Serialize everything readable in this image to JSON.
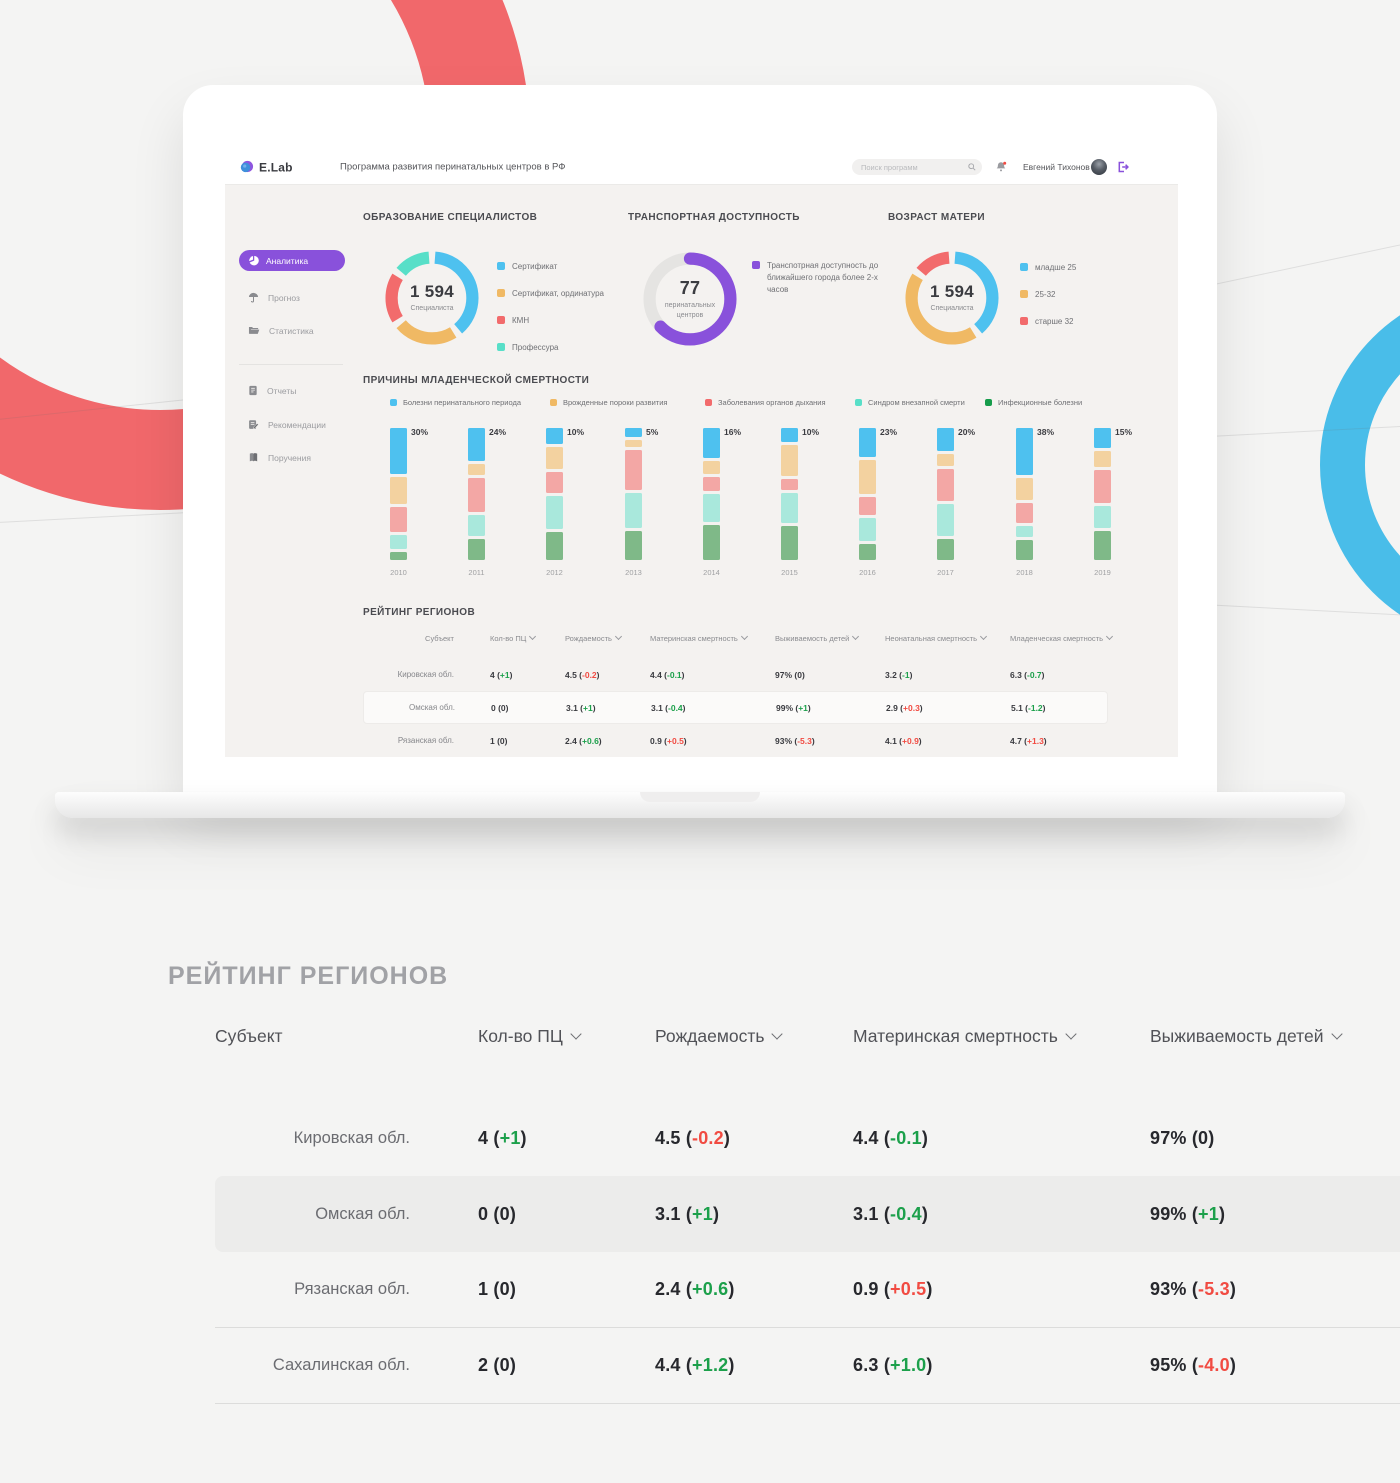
{
  "header": {
    "logo_text": "E.Lab",
    "app_title": "Программа развития перинатальных центров в  РФ",
    "search_placeholder": "Поиск программ",
    "user_name": "Евгений Тихонов"
  },
  "sidebar": {
    "items": [
      {
        "label": "Аналитика"
      },
      {
        "label": "Прогноз"
      },
      {
        "label": "Статистика"
      },
      {
        "label": "Отчеты"
      },
      {
        "label": "Рекомендации"
      },
      {
        "label": "Поручения"
      }
    ]
  },
  "donuts": [
    {
      "title": "ОБРАЗОВАНИЕ СПЕЦИАЛИСТОВ",
      "center_value": "1 594",
      "center_label": "Специалиста",
      "round_caps": false,
      "track": null,
      "segments": [
        {
          "label": "Сертификат",
          "color": "#4EC1EF",
          "value": 40
        },
        {
          "label": "Сертификат, ординатура",
          "color": "#F0B964",
          "value": 25
        },
        {
          "label": "КМН",
          "color": "#F26B6C",
          "value": 20
        },
        {
          "label": "Профессура",
          "color": "#58DFC8",
          "value": 15
        }
      ]
    },
    {
      "title": "ТРАНСПОРТНАЯ ДОСТУПНОСТЬ",
      "center_value": "77",
      "center_label": "перинатальных центров",
      "round_caps": true,
      "track": "#E5E4E2",
      "segments": [
        {
          "label": "Транспотрная доступность до ближайшего города более 2-х часов",
          "color": "#8951DB",
          "value": 63
        }
      ]
    },
    {
      "title": "ВОЗРАСТ МАТЕРИ",
      "center_value": "1 594",
      "center_label": "Специалиста",
      "round_caps": false,
      "track": null,
      "segments": [
        {
          "label": "младше 25",
          "color": "#4EC1EF",
          "value": 40
        },
        {
          "label": "25-32",
          "color": "#F0B964",
          "value": 45
        },
        {
          "label": "старше 32",
          "color": "#F26B6C",
          "value": 15
        }
      ]
    }
  ],
  "mortality_chart": {
    "title": "ПРИЧИНЫ МЛАДЕНЧЕСКОЙ СМЕРТНОСТИ",
    "type": "stacked-bar",
    "legend": [
      {
        "label": "Болезни перинатального периода",
        "color": "#4EC1EF"
      },
      {
        "label": "Врожденные пороки развития",
        "color": "#F0B964"
      },
      {
        "label": "Заболевания органов дыхания",
        "color": "#F26B6C"
      },
      {
        "label": "Синдром внезапной смерти",
        "color": "#58DFC8"
      },
      {
        "label": "Инфекционные болезни",
        "color": "#169C4B"
      }
    ],
    "bar_colors": [
      "#4EC1EF",
      "#F3D2A0",
      "#F3A7A5",
      "#A9E8DC",
      "#7FB988"
    ],
    "bars": [
      {
        "year": "2010",
        "label": "30%",
        "values": [
          34,
          20,
          19,
          10,
          6
        ]
      },
      {
        "year": "2011",
        "label": "24%",
        "values": [
          25,
          9,
          26,
          16,
          16
        ]
      },
      {
        "year": "2012",
        "label": "10%",
        "values": [
          12,
          17,
          16,
          25,
          21
        ]
      },
      {
        "year": "2013",
        "label": "5%",
        "values": [
          7,
          5,
          30,
          26,
          22
        ]
      },
      {
        "year": "2014",
        "label": "16%",
        "values": [
          22,
          10,
          10,
          21,
          26
        ]
      },
      {
        "year": "2015",
        "label": "10%",
        "values": [
          11,
          25,
          9,
          24,
          27
        ]
      },
      {
        "year": "2016",
        "label": "23%",
        "values": [
          22,
          25,
          14,
          17,
          12
        ]
      },
      {
        "year": "2017",
        "label": "20%",
        "values": [
          17,
          9,
          24,
          24,
          16
        ]
      },
      {
        "year": "2018",
        "label": "38%",
        "values": [
          35,
          17,
          15,
          8,
          15
        ]
      },
      {
        "year": "2019",
        "label": "15%",
        "values": [
          16,
          13,
          26,
          18,
          23
        ]
      }
    ]
  },
  "screen_table": {
    "title": "РЕЙТИНГ РЕГИОНОВ",
    "columns": [
      "Субъект",
      "Кол-во ПЦ",
      "Рождаемость",
      "Материнская смертность",
      "Выживаемость детей",
      "Неонатальная смертность",
      "Младенческая смертность"
    ],
    "rows": [
      {
        "name": "Кировская обл.",
        "cells": [
          {
            "v": "4",
            "t": "+1",
            "c": "g"
          },
          {
            "v": "4.5",
            "t": "-0.2",
            "c": "r"
          },
          {
            "v": "4.4",
            "t": "-0.1",
            "c": "g"
          },
          {
            "v": "97%",
            "t": "0",
            "c": "p"
          },
          {
            "v": "3.2",
            "t": "-1",
            "c": "g"
          },
          {
            "v": "6.3",
            "t": "-0.7",
            "c": "g"
          }
        ]
      },
      {
        "name": "Омская обл.",
        "cells": [
          {
            "v": "0",
            "t": "0",
            "c": "p"
          },
          {
            "v": "3.1",
            "t": "+1",
            "c": "g"
          },
          {
            "v": "3.1",
            "t": "-0.4",
            "c": "g"
          },
          {
            "v": "99%",
            "t": "+1",
            "c": "g"
          },
          {
            "v": "2.9",
            "t": "+0.3",
            "c": "r"
          },
          {
            "v": "5.1",
            "t": "-1.2",
            "c": "g"
          }
        ]
      },
      {
        "name": "Рязанская обл.",
        "cells": [
          {
            "v": "1",
            "t": "0",
            "c": "p"
          },
          {
            "v": "2.4",
            "t": "+0.6",
            "c": "g"
          },
          {
            "v": "0.9",
            "t": "+0.5",
            "c": "r"
          },
          {
            "v": "93%",
            "t": "-5.3",
            "c": "r"
          },
          {
            "v": "4.1",
            "t": "+0.9",
            "c": "r"
          },
          {
            "v": "4.7",
            "t": "+1.3",
            "c": "r"
          }
        ]
      }
    ]
  },
  "big_table": {
    "title": "РЕЙТИНГ РЕГИОНОВ",
    "columns": [
      "Субъект",
      "Кол-во ПЦ",
      "Рождаемость",
      "Материнская смертность",
      "Выживаемость детей"
    ],
    "rows": [
      {
        "name": "Кировская обл.",
        "cells": [
          {
            "v": "4",
            "t": "+1",
            "c": "g"
          },
          {
            "v": "4.5",
            "t": "-0.2",
            "c": "r"
          },
          {
            "v": "4.4",
            "t": "-0.1",
            "c": "g"
          },
          {
            "v": "97%",
            "t": "0",
            "c": "p"
          }
        ]
      },
      {
        "name": "Омская обл.",
        "cells": [
          {
            "v": "0",
            "t": "0",
            "c": "p"
          },
          {
            "v": "3.1",
            "t": "+1",
            "c": "g"
          },
          {
            "v": "3.1",
            "t": "-0.4",
            "c": "g"
          },
          {
            "v": "99%",
            "t": "+1",
            "c": "g"
          }
        ]
      },
      {
        "name": "Рязанская обл.",
        "cells": [
          {
            "v": "1",
            "t": "0",
            "c": "p"
          },
          {
            "v": "2.4",
            "t": "+0.6",
            "c": "g"
          },
          {
            "v": "0.9",
            "t": "+0.5",
            "c": "r"
          },
          {
            "v": "93%",
            "t": "-5.3",
            "c": "r"
          }
        ]
      },
      {
        "name": "Сахалинская обл.",
        "cells": [
          {
            "v": "2",
            "t": "0",
            "c": "p"
          },
          {
            "v": "4.4",
            "t": "+1.2",
            "c": "g"
          },
          {
            "v": "6.3",
            "t": "+1.0",
            "c": "g"
          },
          {
            "v": "95%",
            "t": "-4.0",
            "c": "r"
          }
        ]
      }
    ]
  },
  "colors": {
    "accent_purple": "#8951DB",
    "positive": "#1CA04B",
    "negative": "#F14B42",
    "blue": "#4EC1EF",
    "red": "#F26B6C",
    "orange": "#F0B964",
    "teal": "#58DFC8"
  }
}
